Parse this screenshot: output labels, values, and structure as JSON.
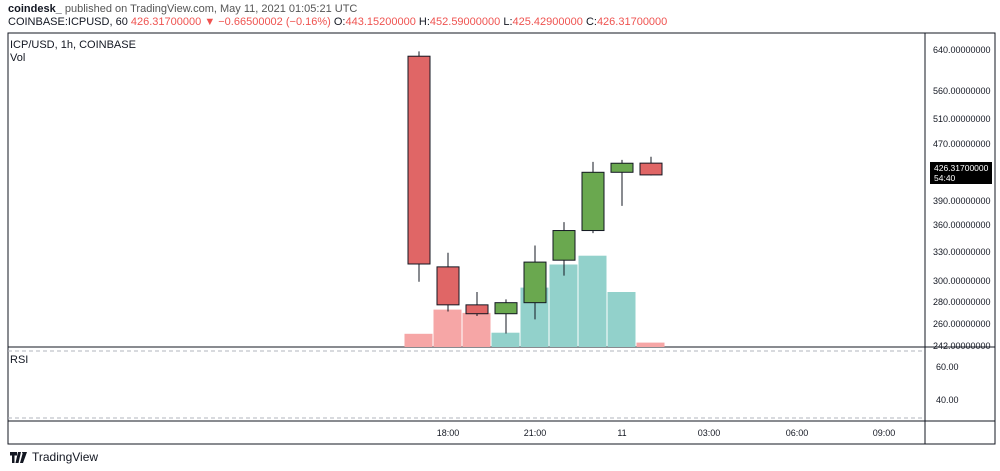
{
  "header": {
    "user": "coindesk_",
    "published": "published on TradingView.com, May 11, 2021 01:05:21 UTC",
    "symbol": "COINBASE:ICPUSD, 60",
    "last": "426.31700000",
    "change": "▼ −0.66500002 (−0.16%)",
    "o_label": "O:",
    "o_val": "443.15200000",
    "h_label": "H:",
    "h_val": "452.59000000",
    "l_label": "L:",
    "l_val": "425.42900000",
    "c_label": "C:",
    "c_val": "426.31700000"
  },
  "pane": {
    "title": "ICP/USD, 1h, COINBASE",
    "vol_label": "Vol",
    "rsi_label": "RSI"
  },
  "price_axis": {
    "ticks": [
      "640.00000000",
      "560.00000000",
      "510.00000000",
      "470.00000000",
      "390.00000000",
      "360.00000000",
      "330.00000000",
      "300.00000000",
      "280.00000000",
      "260.00000000",
      "242.00000000"
    ],
    "current_price": "426.31700000",
    "countdown": "54:40"
  },
  "rsi_axis": {
    "ticks": [
      "60.00",
      "40.00"
    ]
  },
  "time_axis": {
    "ticks": [
      "18:00",
      "21:00",
      "11",
      "03:00",
      "06:00",
      "09:00"
    ]
  },
  "footer": {
    "brand": "TradingView"
  },
  "colors": {
    "up_candle": "#6aa84f",
    "down_candle": "#e06666",
    "up_volume": "#92d1cb",
    "down_volume": "#f6a6a6",
    "grid_dash": "#b2b5be",
    "border": "#131722"
  },
  "chart_data": {
    "type": "candlestick",
    "title": "ICP/USD, 1h, COINBASE",
    "y_scale": "log",
    "ylim": [
      242,
      680
    ],
    "candles": [
      {
        "time": "17:00",
        "open": 630,
        "high": 640,
        "low": 300,
        "close": 318,
        "volume": 12
      },
      {
        "time": "18:00",
        "open": 315,
        "high": 330,
        "low": 272,
        "close": 278,
        "volume": 34
      },
      {
        "time": "19:00",
        "open": 278,
        "high": 290,
        "low": 268,
        "close": 270,
        "volume": 31
      },
      {
        "time": "20:00",
        "open": 270,
        "high": 283,
        "low": 253,
        "close": 280,
        "volume": 13
      },
      {
        "time": "21:00",
        "open": 280,
        "high": 338,
        "low": 265,
        "close": 320,
        "volume": 54
      },
      {
        "time": "22:00",
        "open": 322,
        "high": 365,
        "low": 306,
        "close": 355,
        "volume": 75
      },
      {
        "time": "23:00",
        "open": 355,
        "high": 445,
        "low": 352,
        "close": 430,
        "volume": 83
      },
      {
        "time": "11",
        "open": 430,
        "high": 448,
        "low": 385,
        "close": 443,
        "volume": 50
      },
      {
        "time": "01:00",
        "open": 443.152,
        "high": 452.59,
        "low": 425.429,
        "close": 426.317,
        "volume": 4
      }
    ],
    "volume_max": 100,
    "rsi": {
      "ylim": [
        30,
        70
      ]
    }
  }
}
